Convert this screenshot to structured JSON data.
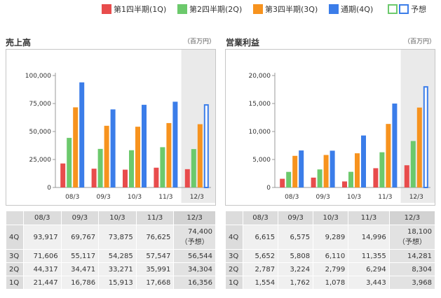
{
  "legend": [
    {
      "label": "第1四半期(1Q)",
      "color": "#e84c4c"
    },
    {
      "label": "第2四半期(2Q)",
      "color": "#6cc96c"
    },
    {
      "label": "第3四半期(3Q)",
      "color": "#f7931e"
    },
    {
      "label": "通期(4Q)",
      "color": "#3b7de9"
    },
    {
      "label": "予想"
    }
  ],
  "forecast_colors": {
    "q2": "#6cc96c",
    "q4": "#3b7de9"
  },
  "charts": [
    {
      "title": "売上高",
      "unit": "（百万円）",
      "chart_data": {
        "type": "bar",
        "categories": [
          "08/3",
          "09/3",
          "10/3",
          "11/3",
          "12/3"
        ],
        "series": [
          {
            "name": "第1四半期(1Q)",
            "values": [
              21447,
              16786,
              15913,
              17668,
              16356
            ]
          },
          {
            "name": "第2四半期(2Q)",
            "values": [
              44317,
              34471,
              33271,
              35991,
              34304
            ]
          },
          {
            "name": "第3四半期(3Q)",
            "values": [
              71606,
              55117,
              54285,
              57547,
              56544
            ]
          },
          {
            "name": "通期(4Q)",
            "values": [
              93917,
              69767,
              73875,
              76625,
              74400
            ]
          }
        ],
        "ylim": [
          0,
          100000
        ],
        "yticks": [
          "0",
          "25,000",
          "50,000",
          "75,000",
          "100,000"
        ],
        "forecast_category": "12/3",
        "grid": false
      }
    },
    {
      "title": "営業利益",
      "unit": "（百万円）",
      "chart_data": {
        "type": "bar",
        "categories": [
          "08/3",
          "09/3",
          "10/3",
          "11/3",
          "12/3"
        ],
        "series": [
          {
            "name": "第1四半期(1Q)",
            "values": [
              1554,
              1762,
              1078,
              3443,
              3968
            ]
          },
          {
            "name": "第2四半期(2Q)",
            "values": [
              2787,
              3224,
              2799,
              6294,
              8304
            ]
          },
          {
            "name": "第3四半期(3Q)",
            "values": [
              5652,
              5808,
              6110,
              11355,
              14281
            ]
          },
          {
            "name": "通期(4Q)",
            "values": [
              6615,
              6575,
              9289,
              14996,
              18100
            ]
          }
        ],
        "ylim": [
          0,
          20000
        ],
        "yticks": [
          "0",
          "5,000",
          "10,000",
          "15,000",
          "20,000"
        ],
        "forecast_category": "12/3",
        "grid": false
      }
    }
  ],
  "tables": [
    {
      "header": [
        "08/3",
        "09/3",
        "10/3",
        "11/3",
        "12/3"
      ],
      "rows": [
        {
          "label": "4Q",
          "cells": [
            "93,917",
            "69,767",
            "73,875",
            "76,625",
            "74,400"
          ],
          "note": "（予想）"
        },
        {
          "label": "3Q",
          "cells": [
            "71,606",
            "55,117",
            "54,285",
            "57,547",
            "56,544"
          ]
        },
        {
          "label": "2Q",
          "cells": [
            "44,317",
            "34,471",
            "33,271",
            "35,991",
            "34,304"
          ]
        },
        {
          "label": "1Q",
          "cells": [
            "21,447",
            "16,786",
            "15,913",
            "17,668",
            "16,356"
          ]
        }
      ]
    },
    {
      "header": [
        "08/3",
        "09/3",
        "10/3",
        "11/3",
        "12/3"
      ],
      "rows": [
        {
          "label": "4Q",
          "cells": [
            "6,615",
            "6,575",
            "9,289",
            "14,996",
            "18,100"
          ],
          "note": "（予想）"
        },
        {
          "label": "3Q",
          "cells": [
            "5,652",
            "5,808",
            "6,110",
            "11,355",
            "14,281"
          ]
        },
        {
          "label": "2Q",
          "cells": [
            "2,787",
            "3,224",
            "2,799",
            "6,294",
            "8,304"
          ]
        },
        {
          "label": "1Q",
          "cells": [
            "1,554",
            "1,762",
            "1,078",
            "3,443",
            "3,968"
          ]
        }
      ]
    }
  ]
}
